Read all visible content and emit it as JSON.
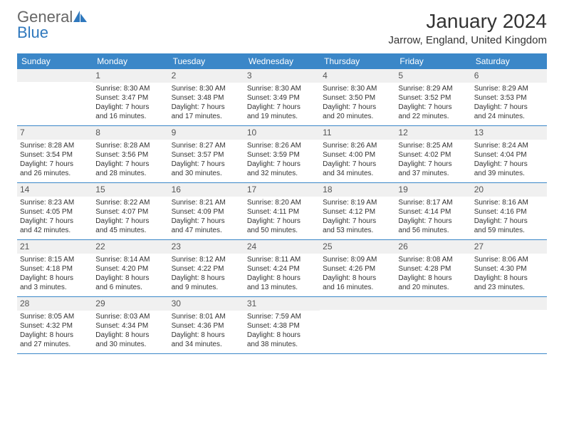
{
  "brand": {
    "part1": "General",
    "part2": "Blue"
  },
  "title": "January 2024",
  "location": "Jarrow, England, United Kingdom",
  "colors": {
    "header_bg": "#3b87c8",
    "header_text": "#ffffff",
    "shade_bg": "#f0f0f0",
    "row_border": "#3b87c8",
    "brand_blue": "#2f78bd",
    "brand_gray": "#666666",
    "text": "#333333"
  },
  "dayNames": [
    "Sunday",
    "Monday",
    "Tuesday",
    "Wednesday",
    "Thursday",
    "Friday",
    "Saturday"
  ],
  "weeks": [
    [
      {
        "blank": true
      },
      {
        "day": "1",
        "sunrise": "Sunrise: 8:30 AM",
        "sunset": "Sunset: 3:47 PM",
        "dl1": "Daylight: 7 hours",
        "dl2": "and 16 minutes."
      },
      {
        "day": "2",
        "sunrise": "Sunrise: 8:30 AM",
        "sunset": "Sunset: 3:48 PM",
        "dl1": "Daylight: 7 hours",
        "dl2": "and 17 minutes."
      },
      {
        "day": "3",
        "sunrise": "Sunrise: 8:30 AM",
        "sunset": "Sunset: 3:49 PM",
        "dl1": "Daylight: 7 hours",
        "dl2": "and 19 minutes."
      },
      {
        "day": "4",
        "sunrise": "Sunrise: 8:30 AM",
        "sunset": "Sunset: 3:50 PM",
        "dl1": "Daylight: 7 hours",
        "dl2": "and 20 minutes."
      },
      {
        "day": "5",
        "sunrise": "Sunrise: 8:29 AM",
        "sunset": "Sunset: 3:52 PM",
        "dl1": "Daylight: 7 hours",
        "dl2": "and 22 minutes."
      },
      {
        "day": "6",
        "sunrise": "Sunrise: 8:29 AM",
        "sunset": "Sunset: 3:53 PM",
        "dl1": "Daylight: 7 hours",
        "dl2": "and 24 minutes."
      }
    ],
    [
      {
        "day": "7",
        "sunrise": "Sunrise: 8:28 AM",
        "sunset": "Sunset: 3:54 PM",
        "dl1": "Daylight: 7 hours",
        "dl2": "and 26 minutes."
      },
      {
        "day": "8",
        "sunrise": "Sunrise: 8:28 AM",
        "sunset": "Sunset: 3:56 PM",
        "dl1": "Daylight: 7 hours",
        "dl2": "and 28 minutes."
      },
      {
        "day": "9",
        "sunrise": "Sunrise: 8:27 AM",
        "sunset": "Sunset: 3:57 PM",
        "dl1": "Daylight: 7 hours",
        "dl2": "and 30 minutes."
      },
      {
        "day": "10",
        "sunrise": "Sunrise: 8:26 AM",
        "sunset": "Sunset: 3:59 PM",
        "dl1": "Daylight: 7 hours",
        "dl2": "and 32 minutes."
      },
      {
        "day": "11",
        "sunrise": "Sunrise: 8:26 AM",
        "sunset": "Sunset: 4:00 PM",
        "dl1": "Daylight: 7 hours",
        "dl2": "and 34 minutes."
      },
      {
        "day": "12",
        "sunrise": "Sunrise: 8:25 AM",
        "sunset": "Sunset: 4:02 PM",
        "dl1": "Daylight: 7 hours",
        "dl2": "and 37 minutes."
      },
      {
        "day": "13",
        "sunrise": "Sunrise: 8:24 AM",
        "sunset": "Sunset: 4:04 PM",
        "dl1": "Daylight: 7 hours",
        "dl2": "and 39 minutes."
      }
    ],
    [
      {
        "day": "14",
        "sunrise": "Sunrise: 8:23 AM",
        "sunset": "Sunset: 4:05 PM",
        "dl1": "Daylight: 7 hours",
        "dl2": "and 42 minutes."
      },
      {
        "day": "15",
        "sunrise": "Sunrise: 8:22 AM",
        "sunset": "Sunset: 4:07 PM",
        "dl1": "Daylight: 7 hours",
        "dl2": "and 45 minutes."
      },
      {
        "day": "16",
        "sunrise": "Sunrise: 8:21 AM",
        "sunset": "Sunset: 4:09 PM",
        "dl1": "Daylight: 7 hours",
        "dl2": "and 47 minutes."
      },
      {
        "day": "17",
        "sunrise": "Sunrise: 8:20 AM",
        "sunset": "Sunset: 4:11 PM",
        "dl1": "Daylight: 7 hours",
        "dl2": "and 50 minutes."
      },
      {
        "day": "18",
        "sunrise": "Sunrise: 8:19 AM",
        "sunset": "Sunset: 4:12 PM",
        "dl1": "Daylight: 7 hours",
        "dl2": "and 53 minutes."
      },
      {
        "day": "19",
        "sunrise": "Sunrise: 8:17 AM",
        "sunset": "Sunset: 4:14 PM",
        "dl1": "Daylight: 7 hours",
        "dl2": "and 56 minutes."
      },
      {
        "day": "20",
        "sunrise": "Sunrise: 8:16 AM",
        "sunset": "Sunset: 4:16 PM",
        "dl1": "Daylight: 7 hours",
        "dl2": "and 59 minutes."
      }
    ],
    [
      {
        "day": "21",
        "sunrise": "Sunrise: 8:15 AM",
        "sunset": "Sunset: 4:18 PM",
        "dl1": "Daylight: 8 hours",
        "dl2": "and 3 minutes."
      },
      {
        "day": "22",
        "sunrise": "Sunrise: 8:14 AM",
        "sunset": "Sunset: 4:20 PM",
        "dl1": "Daylight: 8 hours",
        "dl2": "and 6 minutes."
      },
      {
        "day": "23",
        "sunrise": "Sunrise: 8:12 AM",
        "sunset": "Sunset: 4:22 PM",
        "dl1": "Daylight: 8 hours",
        "dl2": "and 9 minutes."
      },
      {
        "day": "24",
        "sunrise": "Sunrise: 8:11 AM",
        "sunset": "Sunset: 4:24 PM",
        "dl1": "Daylight: 8 hours",
        "dl2": "and 13 minutes."
      },
      {
        "day": "25",
        "sunrise": "Sunrise: 8:09 AM",
        "sunset": "Sunset: 4:26 PM",
        "dl1": "Daylight: 8 hours",
        "dl2": "and 16 minutes."
      },
      {
        "day": "26",
        "sunrise": "Sunrise: 8:08 AM",
        "sunset": "Sunset: 4:28 PM",
        "dl1": "Daylight: 8 hours",
        "dl2": "and 20 minutes."
      },
      {
        "day": "27",
        "sunrise": "Sunrise: 8:06 AM",
        "sunset": "Sunset: 4:30 PM",
        "dl1": "Daylight: 8 hours",
        "dl2": "and 23 minutes."
      }
    ],
    [
      {
        "day": "28",
        "sunrise": "Sunrise: 8:05 AM",
        "sunset": "Sunset: 4:32 PM",
        "dl1": "Daylight: 8 hours",
        "dl2": "and 27 minutes."
      },
      {
        "day": "29",
        "sunrise": "Sunrise: 8:03 AM",
        "sunset": "Sunset: 4:34 PM",
        "dl1": "Daylight: 8 hours",
        "dl2": "and 30 minutes."
      },
      {
        "day": "30",
        "sunrise": "Sunrise: 8:01 AM",
        "sunset": "Sunset: 4:36 PM",
        "dl1": "Daylight: 8 hours",
        "dl2": "and 34 minutes."
      },
      {
        "day": "31",
        "sunrise": "Sunrise: 7:59 AM",
        "sunset": "Sunset: 4:38 PM",
        "dl1": "Daylight: 8 hours",
        "dl2": "and 38 minutes."
      },
      {
        "blank": true
      },
      {
        "blank": true
      },
      {
        "blank": true
      }
    ]
  ]
}
